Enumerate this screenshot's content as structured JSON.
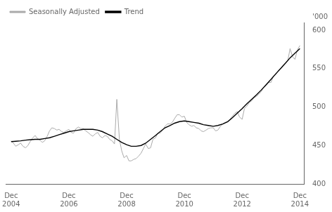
{
  "chart_data": {
    "type": "line",
    "ylabel": "'000",
    "series": [
      {
        "name": "Seasonally Adjusted",
        "color": "#aaaaaa",
        "x": [
          2004.92,
          2005.0,
          2005.08,
          2005.17,
          2005.25,
          2005.33,
          2005.42,
          2005.5,
          2005.58,
          2005.67,
          2005.75,
          2005.83,
          2005.92,
          2006.0,
          2006.08,
          2006.17,
          2006.25,
          2006.33,
          2006.42,
          2006.5,
          2006.58,
          2006.67,
          2006.75,
          2006.83,
          2006.92,
          2007.0,
          2007.08,
          2007.17,
          2007.25,
          2007.33,
          2007.42,
          2007.5,
          2007.58,
          2007.67,
          2007.75,
          2007.83,
          2007.92,
          2008.0,
          2008.08,
          2008.17,
          2008.25,
          2008.33,
          2008.42,
          2008.5,
          2008.58,
          2008.67,
          2008.75,
          2008.83,
          2008.92,
          2009.0,
          2009.08,
          2009.17,
          2009.25,
          2009.33,
          2009.42,
          2009.5,
          2009.58,
          2009.67,
          2009.75,
          2009.83,
          2009.92,
          2010.0,
          2010.08,
          2010.17,
          2010.25,
          2010.33,
          2010.42,
          2010.5,
          2010.58,
          2010.67,
          2010.75,
          2010.83,
          2010.92,
          2011.0,
          2011.08,
          2011.17,
          2011.25,
          2011.33,
          2011.42,
          2011.5,
          2011.58,
          2011.67,
          2011.75,
          2011.83,
          2011.92,
          2012.0,
          2012.08,
          2012.17,
          2012.25,
          2012.33,
          2012.42,
          2012.5,
          2012.58,
          2012.67,
          2012.75,
          2012.83,
          2012.92,
          2013.0,
          2013.08,
          2013.17,
          2013.25,
          2013.33,
          2013.42,
          2013.5,
          2013.58,
          2013.67,
          2013.75,
          2013.83,
          2013.92,
          2014.0,
          2014.08,
          2014.17,
          2014.25,
          2014.33,
          2014.42,
          2014.5,
          2014.58,
          2014.67,
          2014.75,
          2014.83,
          2014.92
        ],
        "values": [
          456,
          453,
          449,
          451,
          453,
          449,
          447,
          450,
          455,
          460,
          463,
          459,
          457,
          454,
          456,
          462,
          469,
          473,
          472,
          470,
          471,
          468,
          467,
          469,
          471,
          467,
          466,
          472,
          474,
          472,
          472,
          469,
          467,
          464,
          462,
          465,
          467,
          462,
          460,
          463,
          462,
          458,
          456,
          452,
          510,
          458,
          443,
          434,
          437,
          430,
          430,
          432,
          433,
          436,
          440,
          446,
          452,
          446,
          447,
          458,
          460,
          466,
          466,
          470,
          475,
          478,
          478,
          480,
          485,
          490,
          490,
          487,
          488,
          480,
          477,
          475,
          476,
          473,
          472,
          469,
          468,
          470,
          472,
          473,
          473,
          469,
          470,
          475,
          478,
          480,
          481,
          484,
          488,
          492,
          494,
          487,
          484,
          498,
          501,
          506,
          508,
          512,
          514,
          517,
          520,
          526,
          528,
          532,
          532,
          540,
          542,
          547,
          550,
          554,
          557,
          560,
          576,
          565,
          562,
          574,
          580
        ]
      },
      {
        "name": "Trend",
        "color": "#000000",
        "x": [
          2004.92,
          2005.08,
          2005.25,
          2005.42,
          2005.58,
          2005.75,
          2005.92,
          2006.08,
          2006.25,
          2006.42,
          2006.58,
          2006.75,
          2006.92,
          2007.08,
          2007.25,
          2007.42,
          2007.58,
          2007.75,
          2007.92,
          2008.08,
          2008.25,
          2008.42,
          2008.58,
          2008.75,
          2008.92,
          2009.08,
          2009.25,
          2009.42,
          2009.58,
          2009.75,
          2009.92,
          2010.08,
          2010.25,
          2010.42,
          2010.58,
          2010.75,
          2010.92,
          2011.08,
          2011.25,
          2011.42,
          2011.58,
          2011.75,
          2011.92,
          2012.08,
          2012.25,
          2012.42,
          2012.58,
          2012.75,
          2012.92,
          2013.08,
          2013.25,
          2013.42,
          2013.58,
          2013.75,
          2013.92,
          2014.08,
          2014.25,
          2014.42,
          2014.58,
          2014.75,
          2014.92
        ],
        "values": [
          455,
          455.5,
          456,
          457,
          457.5,
          458,
          458,
          459,
          460,
          462,
          464,
          466,
          468,
          469,
          470,
          471,
          471,
          471,
          470,
          468,
          465,
          462,
          458,
          454,
          451,
          449,
          449,
          450,
          453,
          458,
          463,
          468,
          473,
          476,
          479,
          481,
          482,
          481,
          480,
          479,
          477,
          476,
          475,
          476,
          478,
          481,
          486,
          492,
          498,
          504,
          510,
          516,
          522,
          529,
          536,
          543,
          550,
          557,
          564,
          570,
          576
        ]
      }
    ],
    "xlim": [
      2004.75,
      2015.08
    ],
    "xticks": [
      {
        "value": 2004.92,
        "label": "Dec\n2004"
      },
      {
        "value": 2006.92,
        "label": "Dec\n2006"
      },
      {
        "value": 2008.92,
        "label": "Dec\n2008"
      },
      {
        "value": 2010.92,
        "label": "Dec\n2010"
      },
      {
        "value": 2012.92,
        "label": "Dec\n2012"
      },
      {
        "value": 2014.92,
        "label": "Dec\n2014"
      }
    ],
    "ylim": [
      400,
      610
    ],
    "yticks": [
      400,
      450,
      500,
      550,
      600
    ],
    "grid": false,
    "legend": "upper left"
  }
}
